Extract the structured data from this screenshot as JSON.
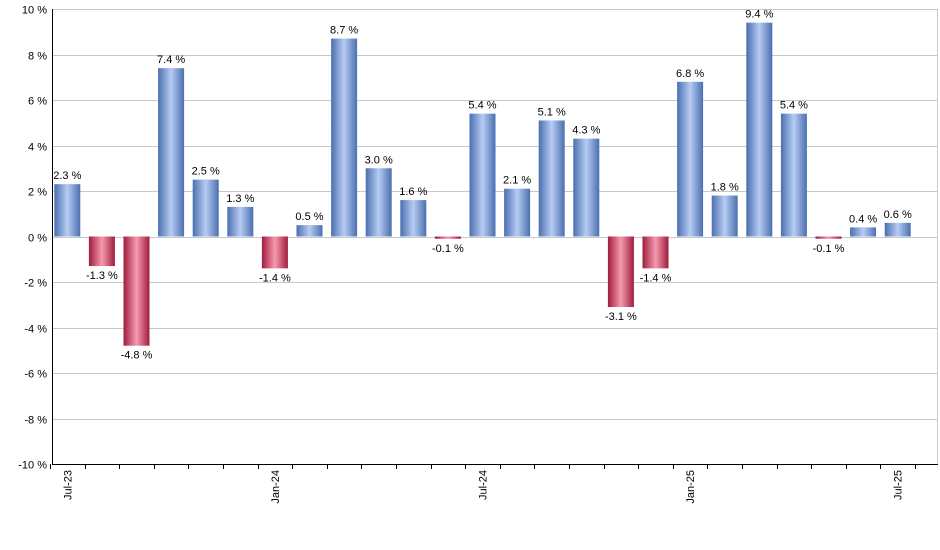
{
  "chart_data": {
    "type": "bar",
    "title": "",
    "xlabel": "",
    "ylabel": "",
    "ylim": [
      -10,
      10
    ],
    "y_ticks": [
      10,
      8,
      6,
      4,
      2,
      0,
      -2,
      -4,
      -6,
      -8,
      -10
    ],
    "y_tick_suffix": " %",
    "grid": true,
    "values": [
      2.3,
      -1.3,
      -4.8,
      7.4,
      2.5,
      1.3,
      -1.4,
      0.5,
      8.7,
      3.0,
      1.6,
      -0.1,
      5.4,
      2.1,
      5.1,
      4.3,
      -3.1,
      -1.4,
      6.8,
      1.8,
      9.4,
      5.4,
      -0.1,
      0.4,
      0.6
    ],
    "data_labels": [
      "2.3 %",
      "-1.3 %",
      "-4.8 %",
      "7.4 %",
      "2.5 %",
      "1.3 %",
      "-1.4 %",
      "0.5 %",
      "8.7 %",
      "3.0 %",
      "1.6 %",
      "-0.1 %",
      "5.4 %",
      "2.1 %",
      "5.1 %",
      "4.3 %",
      "-3.1 %",
      "-1.4 %",
      "6.8 %",
      "1.8 %",
      "9.4 %",
      "5.4 %",
      "-0.1 %",
      "0.4 %",
      "0.6 %"
    ],
    "x_tick_labels": [
      {
        "index": 0,
        "label": "Jul-23"
      },
      {
        "index": 6,
        "label": "Jan-24"
      },
      {
        "index": 12,
        "label": "Jul-24"
      },
      {
        "index": 18,
        "label": "Jan-25"
      },
      {
        "index": 24,
        "label": "Jul-25"
      }
    ],
    "colors": {
      "positive_dark": "#4a6fb0",
      "positive_light": "#b7ccf3",
      "negative_dark": "#a01c3c",
      "negative_light": "#f59ab0",
      "grid": "#c8c8c8",
      "axis": "#000000"
    }
  }
}
